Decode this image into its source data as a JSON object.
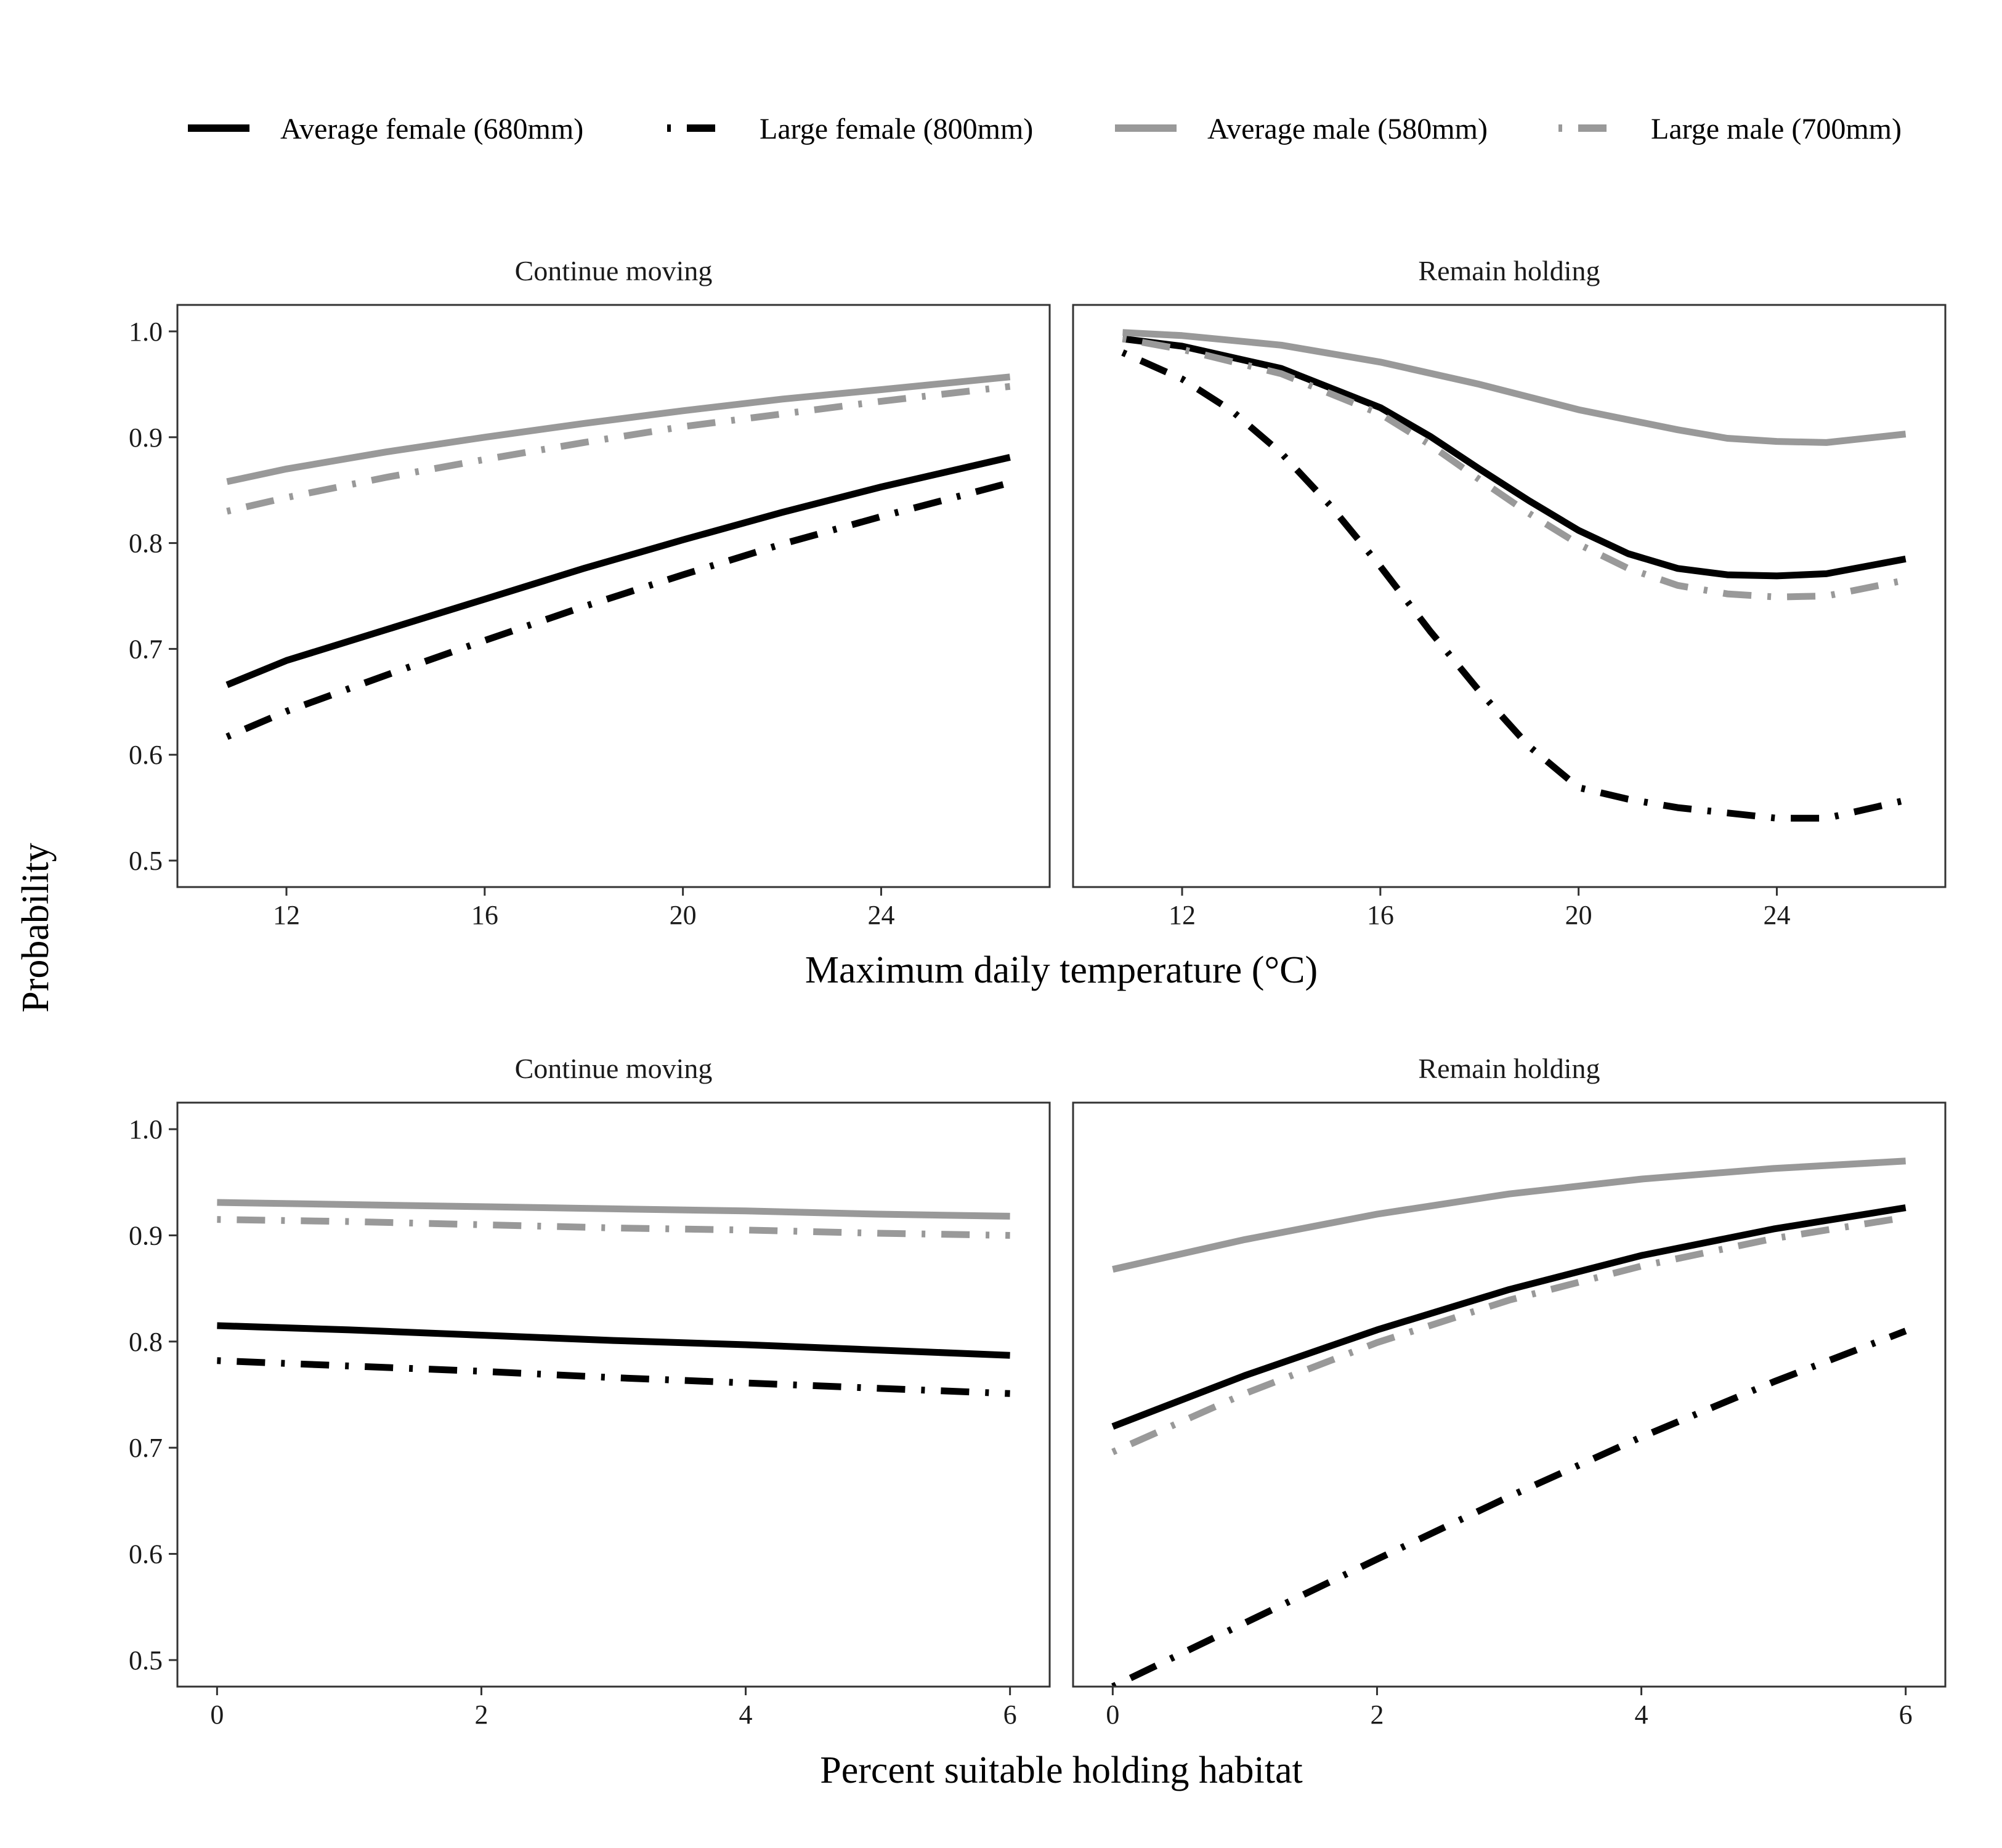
{
  "ylabel": "Probability",
  "legend": {
    "position": "top",
    "entries": [
      {
        "name": "Average female (680mm)",
        "color": "#000000",
        "dash": "solid"
      },
      {
        "name": "Large female (800mm)",
        "color": "#000000",
        "dash": "dotdash"
      },
      {
        "name": "Average male (580mm)",
        "color": "#999999",
        "dash": "solid"
      },
      {
        "name": "Large male (700mm)",
        "color": "#999999",
        "dash": "dotdash"
      }
    ]
  },
  "chart_data": [
    {
      "type": "line",
      "facet": "Continue moving",
      "xlabel": "Maximum daily temperature (°C)",
      "xlim": [
        9.8,
        27.4
      ],
      "ylim": [
        0.475,
        1.025
      ],
      "xticks": [
        12,
        16,
        20,
        24
      ],
      "yticks": [
        0.5,
        0.6,
        0.7,
        0.8,
        0.9,
        1.0
      ],
      "series": [
        {
          "name": "Average female (680mm)",
          "x": [
            10.8,
            12,
            14,
            16,
            18,
            20,
            22,
            24,
            26.6
          ],
          "y": [
            0.666,
            0.689,
            0.718,
            0.747,
            0.776,
            0.803,
            0.829,
            0.853,
            0.881
          ]
        },
        {
          "name": "Large female (800mm)",
          "x": [
            10.8,
            12,
            14,
            16,
            18,
            20,
            22,
            24,
            26.6
          ],
          "y": [
            0.617,
            0.641,
            0.675,
            0.708,
            0.74,
            0.77,
            0.799,
            0.825,
            0.857
          ]
        },
        {
          "name": "Average male (580mm)",
          "x": [
            10.8,
            12,
            14,
            16,
            18,
            20,
            22,
            24,
            26.6
          ],
          "y": [
            0.858,
            0.87,
            0.886,
            0.9,
            0.913,
            0.925,
            0.936,
            0.945,
            0.957
          ]
        },
        {
          "name": "Large male (700mm)",
          "x": [
            10.8,
            12,
            14,
            16,
            18,
            20,
            22,
            24,
            26.6
          ],
          "y": [
            0.83,
            0.843,
            0.862,
            0.879,
            0.895,
            0.91,
            0.922,
            0.934,
            0.948
          ]
        }
      ]
    },
    {
      "type": "line",
      "facet": "Remain holding",
      "xlabel": "Maximum daily temperature (°C)",
      "xlim": [
        9.8,
        27.4
      ],
      "ylim": [
        0.475,
        1.025
      ],
      "xticks": [
        12,
        16,
        20,
        24
      ],
      "yticks": [
        0.5,
        0.6,
        0.7,
        0.8,
        0.9,
        1.0
      ],
      "series": [
        {
          "name": "Average female (680mm)",
          "x": [
            10.8,
            12,
            14,
            16,
            17,
            18,
            19,
            20,
            21,
            22,
            23,
            24,
            25,
            26.6
          ],
          "y": [
            0.993,
            0.986,
            0.965,
            0.928,
            0.901,
            0.87,
            0.84,
            0.812,
            0.79,
            0.776,
            0.77,
            0.769,
            0.771,
            0.785
          ]
        },
        {
          "name": "Large female (800mm)",
          "x": [
            10.8,
            12,
            13,
            14,
            15,
            16,
            17,
            18,
            19,
            20,
            21,
            22,
            23,
            24,
            25,
            26.6
          ],
          "y": [
            0.98,
            0.955,
            0.925,
            0.885,
            0.835,
            0.778,
            0.717,
            0.66,
            0.608,
            0.569,
            0.558,
            0.55,
            0.545,
            0.54,
            0.54,
            0.557
          ]
        },
        {
          "name": "Average male (580mm)",
          "x": [
            10.8,
            12,
            14,
            16,
            18,
            20,
            22,
            23,
            24,
            25,
            26.6
          ],
          "y": [
            0.999,
            0.996,
            0.987,
            0.971,
            0.95,
            0.926,
            0.907,
            0.899,
            0.896,
            0.895,
            0.903
          ]
        },
        {
          "name": "Large male (700mm)",
          "x": [
            10.8,
            12,
            14,
            16,
            17,
            18,
            19,
            20,
            21,
            22,
            23,
            24,
            25,
            26.6
          ],
          "y": [
            0.993,
            0.983,
            0.96,
            0.922,
            0.893,
            0.86,
            0.828,
            0.799,
            0.776,
            0.76,
            0.752,
            0.749,
            0.75,
            0.765
          ]
        }
      ]
    },
    {
      "type": "line",
      "facet": "Continue moving",
      "xlabel": "Percent suitable holding habitat",
      "xlim": [
        -0.3,
        6.3
      ],
      "ylim": [
        0.475,
        1.025
      ],
      "xticks": [
        0,
        2,
        4,
        6
      ],
      "yticks": [
        0.5,
        0.6,
        0.7,
        0.8,
        0.9,
        1.0
      ],
      "series": [
        {
          "name": "Average female (680mm)",
          "x": [
            0,
            1,
            2,
            3,
            4,
            5,
            6
          ],
          "y": [
            0.815,
            0.811,
            0.806,
            0.801,
            0.797,
            0.792,
            0.787
          ]
        },
        {
          "name": "Large female (800mm)",
          "x": [
            0,
            1,
            2,
            3,
            4,
            5,
            6
          ],
          "y": [
            0.782,
            0.777,
            0.772,
            0.766,
            0.761,
            0.756,
            0.751
          ]
        },
        {
          "name": "Average male (580mm)",
          "x": [
            0,
            1,
            2,
            3,
            4,
            5,
            6
          ],
          "y": [
            0.931,
            0.929,
            0.927,
            0.925,
            0.923,
            0.92,
            0.918
          ]
        },
        {
          "name": "Large male (700mm)",
          "x": [
            0,
            1,
            2,
            3,
            4,
            5,
            6
          ],
          "y": [
            0.915,
            0.913,
            0.91,
            0.907,
            0.905,
            0.902,
            0.9
          ]
        }
      ]
    },
    {
      "type": "line",
      "facet": "Remain holding",
      "xlabel": "Percent suitable holding habitat",
      "xlim": [
        -0.3,
        6.3
      ],
      "ylim": [
        0.475,
        1.025
      ],
      "xticks": [
        0,
        2,
        4,
        6
      ],
      "yticks": [
        0.5,
        0.6,
        0.7,
        0.8,
        0.9,
        1.0
      ],
      "series": [
        {
          "name": "Average female (680mm)",
          "x": [
            0,
            1,
            2,
            3,
            4,
            5,
            6
          ],
          "y": [
            0.72,
            0.768,
            0.811,
            0.849,
            0.881,
            0.906,
            0.926
          ]
        },
        {
          "name": "Large female (800mm)",
          "x": [
            0,
            1,
            2,
            3,
            4,
            5,
            6
          ],
          "y": [
            0.475,
            0.535,
            0.595,
            0.654,
            0.71,
            0.762,
            0.81
          ]
        },
        {
          "name": "Average male (580mm)",
          "x": [
            0,
            1,
            2,
            3,
            4,
            5,
            6
          ],
          "y": [
            0.868,
            0.896,
            0.92,
            0.939,
            0.953,
            0.963,
            0.97
          ]
        },
        {
          "name": "Large male (700mm)",
          "x": [
            0,
            1,
            2,
            3,
            4,
            5,
            6
          ],
          "y": [
            0.696,
            0.751,
            0.799,
            0.839,
            0.871,
            0.897,
            0.917
          ]
        }
      ]
    }
  ]
}
